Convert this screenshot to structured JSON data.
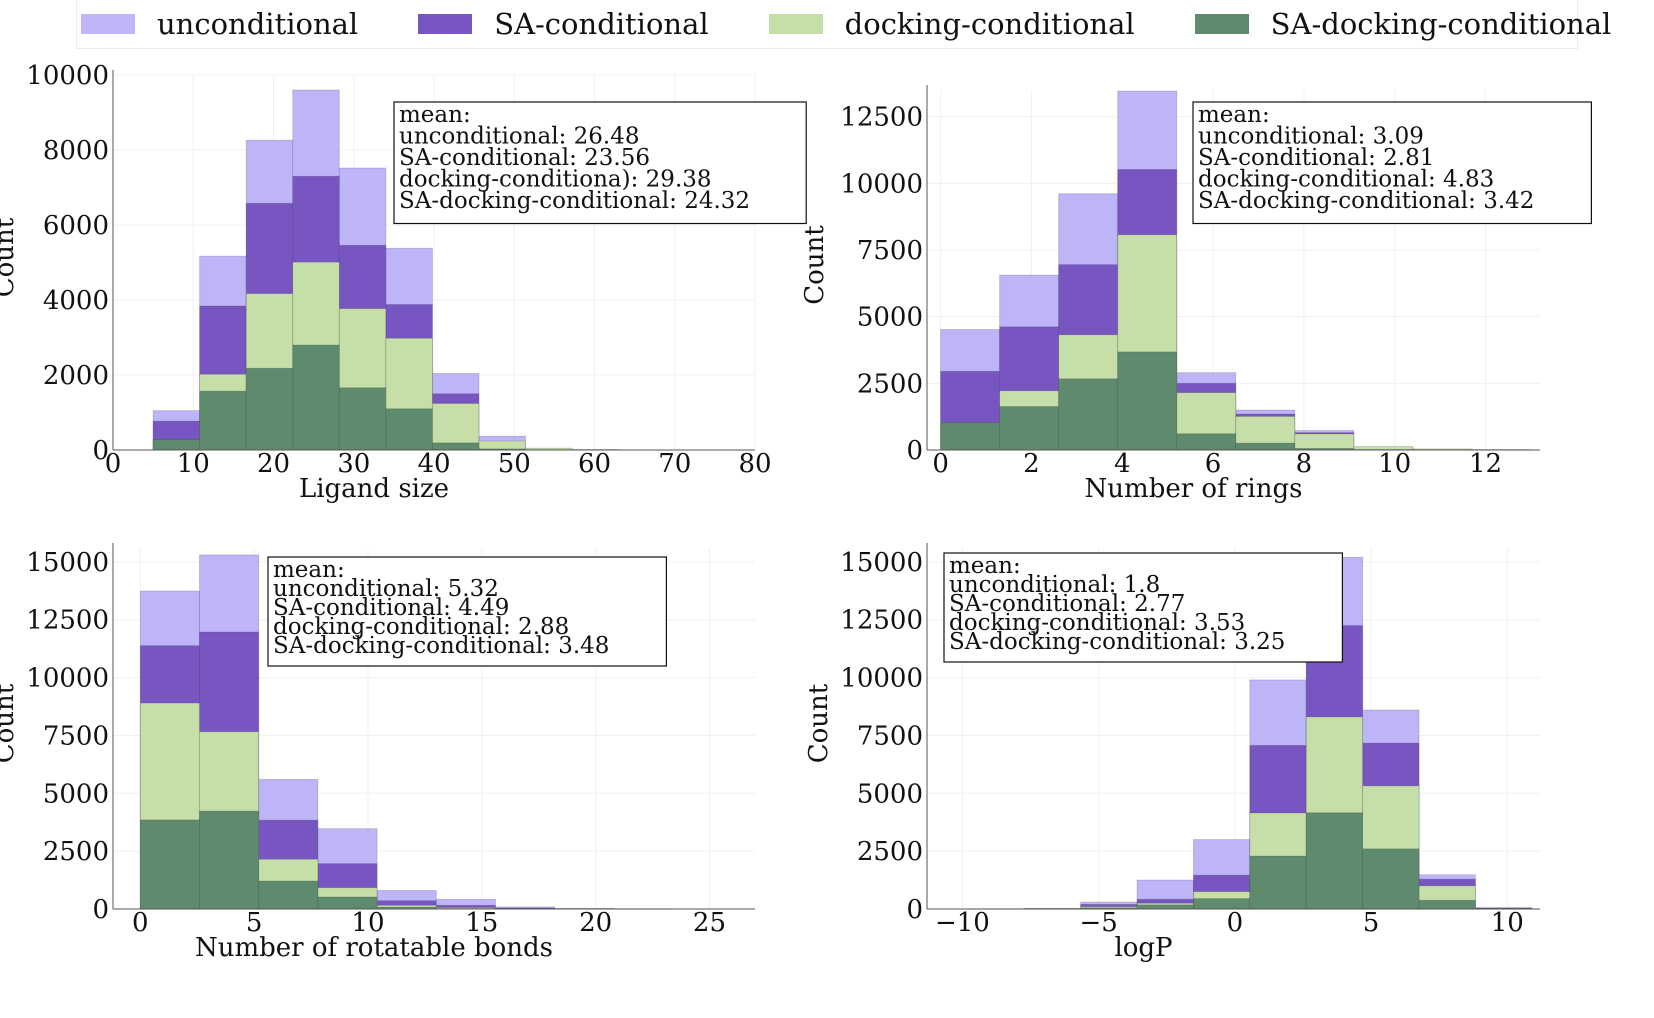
{
  "legend": [
    {
      "label": "unconditional",
      "color": "#bdb5f7"
    },
    {
      "label": "SA-conditional",
      "color": "#7856c2"
    },
    {
      "label": "docking-conditional",
      "color": "#c6dea7"
    },
    {
      "label": "SA-docking-conditional",
      "color": "#5e8a6e"
    }
  ],
  "chart_data": [
    {
      "type": "bar",
      "xlabel": "Ligand size",
      "ylabel": "Count",
      "xlim": [
        0,
        80
      ],
      "ylim": [
        0,
        10000
      ],
      "xticks": [
        "0",
        "10",
        "20",
        "30",
        "40",
        "50",
        "60",
        "70",
        "80"
      ],
      "yticks": [
        "0",
        "2000",
        "4000",
        "6000",
        "8000",
        "10000"
      ],
      "bin_edges": [
        5,
        10.8,
        16.6,
        22.4,
        28.2,
        34,
        39.8,
        45.6,
        51.4,
        57.2,
        63
      ],
      "series": [
        {
          "name": "unconditional",
          "values": [
            1050,
            5170,
            8260,
            9600,
            7520,
            5380,
            2040,
            370,
            40,
            10
          ]
        },
        {
          "name": "SA-conditional",
          "values": [
            770,
            3840,
            6580,
            7300,
            5460,
            3880,
            1500,
            180,
            20,
            5
          ]
        },
        {
          "name": "docking-conditional",
          "values": [
            280,
            2020,
            4170,
            5010,
            3770,
            2980,
            1240,
            240,
            50,
            10
          ]
        },
        {
          "name": "SA-docking-conditional",
          "values": [
            280,
            1570,
            2180,
            2800,
            1660,
            1100,
            190,
            30,
            5,
            0
          ]
        }
      ],
      "stats_box": [
        "mean:",
        "unconditional: 26.48",
        "SA-conditional: 23.56",
        "docking-conditiona): 29.38",
        "SA-docking-conditional: 24.32"
      ]
    },
    {
      "type": "bar",
      "xlabel": "Number of rings",
      "ylabel": "Count",
      "xlim": [
        -0.3,
        13.2
      ],
      "ylim": [
        0,
        13500
      ],
      "xticks": [
        "0",
        "2",
        "4",
        "6",
        "8",
        "10",
        "12"
      ],
      "yticks": [
        "0",
        "2500",
        "5000",
        "7500",
        "10000",
        "12500"
      ],
      "bin_edges": [
        0,
        1.3,
        2.6,
        3.9,
        5.2,
        6.5,
        7.8,
        9.1,
        10.4,
        11.7,
        13
      ],
      "series": [
        {
          "name": "unconditional",
          "values": [
            4520,
            6560,
            9610,
            13460,
            2900,
            1500,
            730,
            100,
            30,
            10
          ]
        },
        {
          "name": "SA-conditional",
          "values": [
            2950,
            4620,
            6950,
            10520,
            2500,
            1350,
            650,
            80,
            20,
            5
          ]
        },
        {
          "name": "docking-conditional",
          "values": [
            1030,
            2220,
            4320,
            8070,
            2150,
            1260,
            600,
            130,
            40,
            15
          ]
        },
        {
          "name": "SA-docking-conditional",
          "values": [
            1030,
            1630,
            2670,
            3680,
            610,
            260,
            60,
            20,
            5,
            0
          ]
        }
      ],
      "stats_box": [
        "mean:",
        "unconditional: 3.09",
        "SA-conditional: 2.81",
        "docking-conditional: 4.83",
        "SA-docking-conditional: 3.42"
      ]
    },
    {
      "type": "bar",
      "xlabel": "Number of rotatable bonds",
      "ylabel": "Count",
      "xlim": [
        -1.2,
        27
      ],
      "ylim": [
        0,
        15600
      ],
      "xticks": [
        "0",
        "5",
        "10",
        "15",
        "20",
        "25"
      ],
      "yticks": [
        "0",
        "2500",
        "5000",
        "7500",
        "10000",
        "12500",
        "15000"
      ],
      "bin_edges": [
        0,
        2.6,
        5.2,
        7.8,
        10.4,
        13,
        15.6,
        18.2,
        20.8,
        23.4,
        26
      ],
      "series": [
        {
          "name": "unconditional",
          "values": [
            13740,
            15300,
            5600,
            3470,
            800,
            420,
            90,
            30,
            10,
            5
          ]
        },
        {
          "name": "SA-conditional",
          "values": [
            11380,
            11970,
            3840,
            1960,
            360,
            160,
            40,
            10,
            5,
            0
          ]
        },
        {
          "name": "docking-conditional",
          "values": [
            8900,
            7660,
            2150,
            920,
            160,
            60,
            15,
            5,
            0,
            0
          ]
        },
        {
          "name": "SA-docking-conditional",
          "values": [
            3850,
            4230,
            1210,
            520,
            80,
            20,
            5,
            0,
            0,
            0
          ]
        }
      ],
      "stats_box": [
        "mean:",
        "unconditional: 5.32",
        "SA-conditional: 4.49",
        "docking-conditional: 2.88",
        "SA-docking-conditional: 3.48"
      ]
    },
    {
      "type": "bar",
      "xlabel": "logP",
      "ylabel": "Count",
      "xlim": [
        -11.3,
        11.2
      ],
      "ylim": [
        0,
        15600
      ],
      "xticks": [
        "−10",
        "−5",
        "0",
        "5",
        "10"
      ],
      "yticks": [
        "0",
        "2500",
        "5000",
        "7500",
        "10000",
        "12500",
        "15000"
      ],
      "bin_edges": [
        -9.8,
        -7.73,
        -5.66,
        -3.59,
        -1.52,
        0.55,
        2.62,
        4.69,
        6.76,
        8.83,
        10.9
      ],
      "series": [
        {
          "name": "unconditional",
          "values": [
            10,
            30,
            300,
            1250,
            3000,
            9900,
            15200,
            8600,
            1480,
            60
          ]
        },
        {
          "name": "SA-conditional",
          "values": [
            5,
            20,
            200,
            420,
            1460,
            7070,
            12250,
            7170,
            1290,
            40
          ]
        },
        {
          "name": "docking-conditional",
          "values": [
            5,
            10,
            100,
            250,
            750,
            4150,
            8300,
            5320,
            1000,
            20
          ]
        },
        {
          "name": "SA-docking-conditional",
          "values": [
            0,
            5,
            50,
            180,
            450,
            2290,
            4160,
            2600,
            380,
            10
          ]
        }
      ],
      "stats_box": [
        "mean:",
        "unconditional: 1.8",
        "SA-conditional: 2.77",
        "docking-conditional: 3.53",
        "SA-docking-conditional: 3.25"
      ]
    }
  ]
}
